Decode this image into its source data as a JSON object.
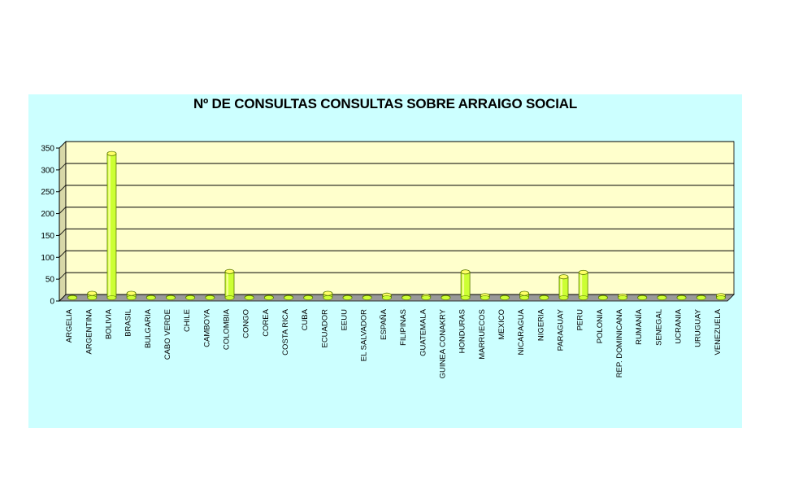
{
  "chart_data": {
    "type": "bar",
    "title": "Nº DE CONSULTAS CONSULTAS SOBRE ARRAIGO SOCIAL",
    "xlabel": "",
    "ylabel": "",
    "ylim": [
      0,
      350
    ],
    "yticks": [
      "0",
      "50",
      "100",
      "150",
      "200",
      "250",
      "300",
      "350"
    ],
    "grid": true,
    "legend": "none",
    "categories": [
      "ARGELIA",
      "ARGENTINA",
      "BOLIVIA",
      "BRASIL",
      "BULGARIA",
      "CABO VERDE",
      "CHILE",
      "CAMBOYA",
      "COLOMBIA",
      "CONGO",
      "COREA",
      "COSTA RICA",
      "CUBA",
      "ECUADOR",
      "EEUU",
      "EL SALVADOR",
      "ESPAÑA",
      "FILIPINAS",
      "GUATEMALA",
      "GUINEA CONAKRY",
      "HONDURAS",
      "MARRUECOS",
      "MEXICO",
      "NICARAGUA",
      "NIGERIA",
      "PARAGUAY",
      "PERU",
      "POLONIA",
      "REP. DOMINICANA",
      "RUMANÍA",
      "SENEGAL",
      "UCRANIA",
      "URUGUAY",
      "VENEZUELA"
    ],
    "values": [
      1,
      10,
      330,
      10,
      1,
      1,
      1,
      1,
      60,
      1,
      1,
      1,
      1,
      10,
      1,
      1,
      6,
      1,
      3,
      1,
      59,
      5,
      1,
      10,
      1,
      48,
      58,
      1,
      4,
      1,
      1,
      1,
      1,
      5
    ],
    "colors": {
      "bar": "#ccff33",
      "bar_dark": "#5a7a00",
      "plot_bg": "#ffffcc",
      "chart_bg": "#ccffff",
      "grid": "#000000"
    }
  }
}
